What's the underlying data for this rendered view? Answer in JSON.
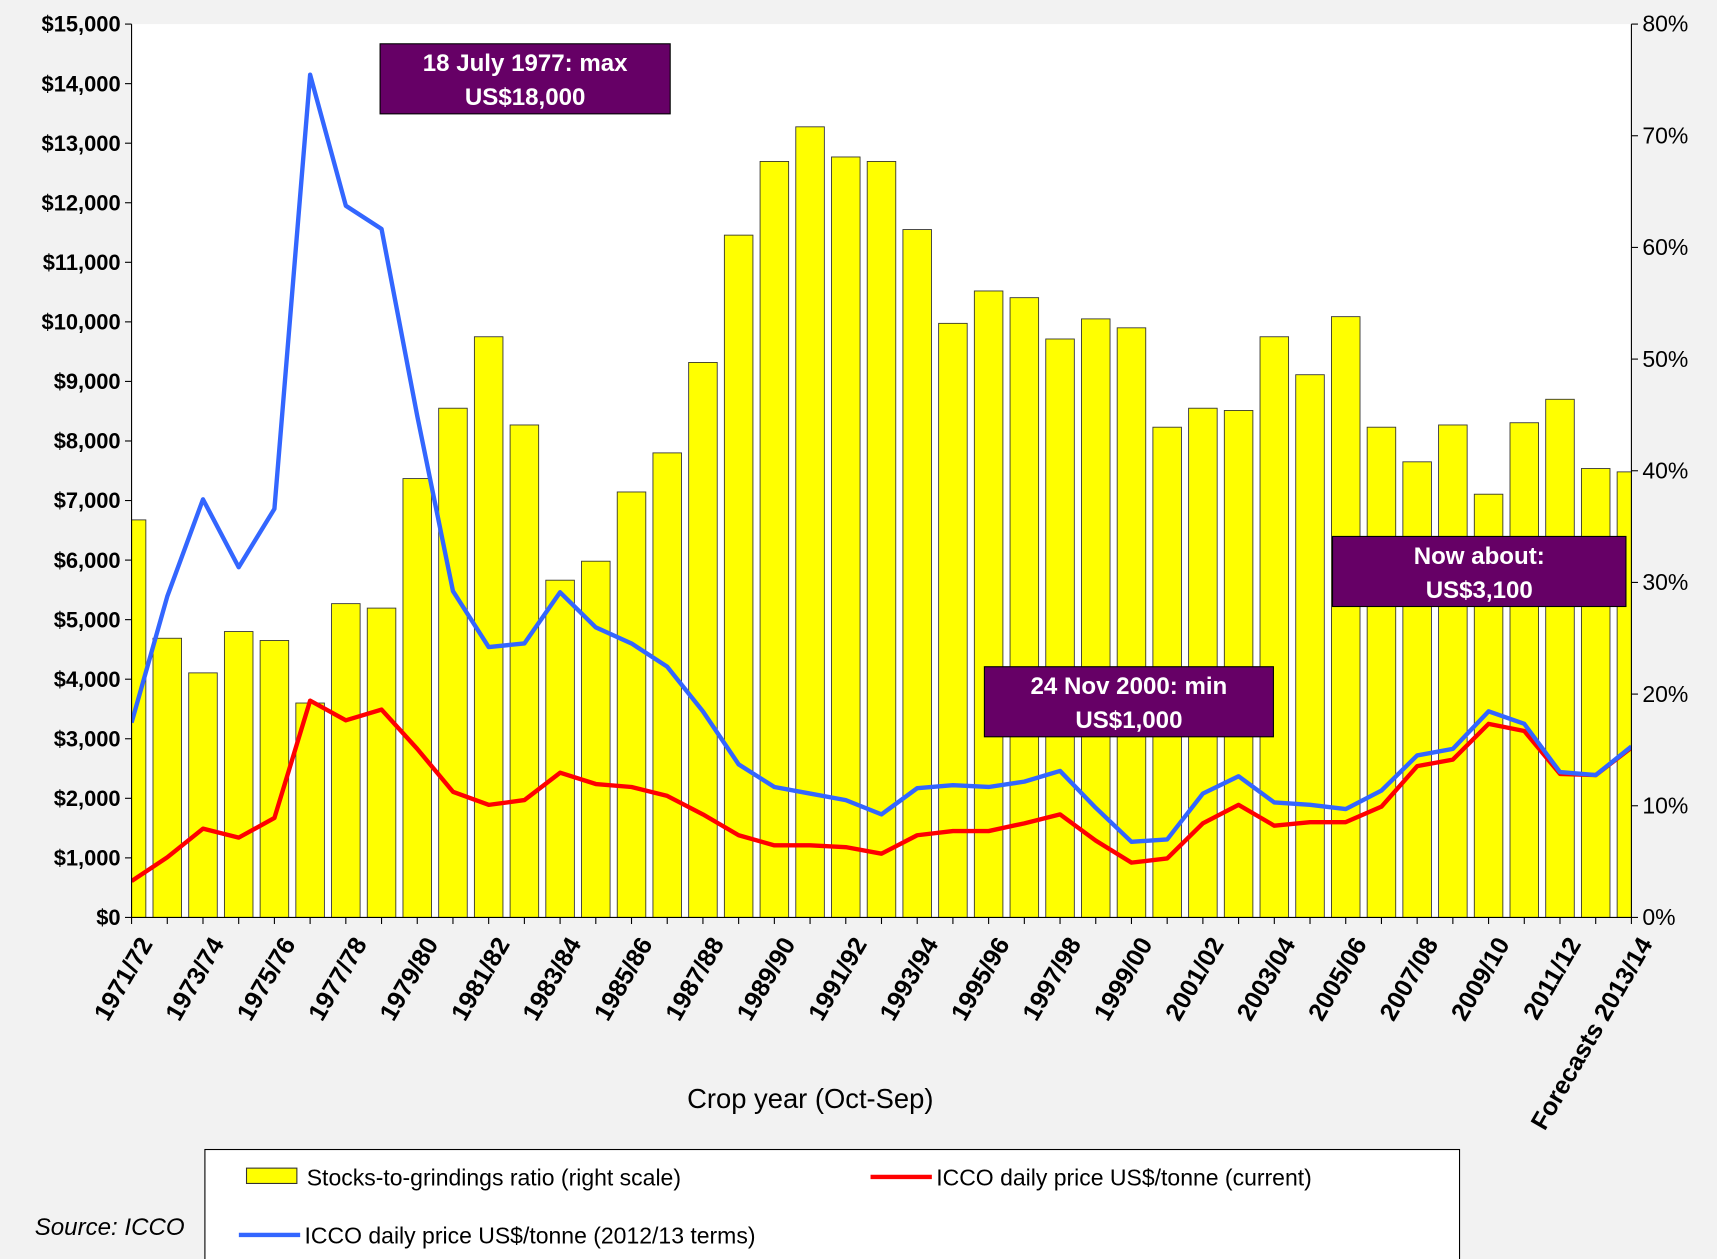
{
  "chart_data": {
    "type": "combo",
    "x_label": "Crop year (Oct-Sep)",
    "source": "Source: ICCO",
    "legend": "bottom",
    "categories": [
      "1971/72",
      null,
      "1973/74",
      null,
      "1975/76",
      null,
      "1977/78",
      null,
      "1979/80",
      null,
      "1981/82",
      null,
      "1983/84",
      null,
      "1985/86",
      null,
      "1987/88",
      null,
      "1989/90",
      null,
      "1991/92",
      null,
      "1993/94",
      null,
      "1995/96",
      null,
      "1997/98",
      null,
      "1999/00",
      null,
      "2001/02",
      null,
      "2003/04",
      null,
      "2005/06",
      null,
      "2007/08",
      null,
      "2009/10",
      null,
      "2011/12",
      null,
      "Forecasts 2013/14"
    ],
    "ylim": [
      0,
      15000
    ],
    "yticks": [
      {
        "value": 0,
        "label": "$0"
      },
      {
        "value": 1000,
        "label": "$1,000"
      },
      {
        "value": 2000,
        "label": "$2,000"
      },
      {
        "value": 3000,
        "label": "$3,000"
      },
      {
        "value": 4000,
        "label": "$4,000"
      },
      {
        "value": 5000,
        "label": "$5,000"
      },
      {
        "value": 6000,
        "label": "$6,000"
      },
      {
        "value": 7000,
        "label": "$7,000"
      },
      {
        "value": 8000,
        "label": "$8,000"
      },
      {
        "value": 9000,
        "label": "$9,000"
      },
      {
        "value": 10000,
        "label": "$10,000"
      },
      {
        "value": 11000,
        "label": "$11,000"
      },
      {
        "value": 12000,
        "label": "$12,000"
      },
      {
        "value": 13000,
        "label": "$13,000"
      },
      {
        "value": 14000,
        "label": "$14,000"
      },
      {
        "value": 15000,
        "label": "$15,000"
      }
    ],
    "y2lim": [
      0,
      80
    ],
    "y2ticks": [
      {
        "value": 0,
        "label": "0%"
      },
      {
        "value": 10,
        "label": "10%"
      },
      {
        "value": 20,
        "label": "20%"
      },
      {
        "value": 30,
        "label": "30%"
      },
      {
        "value": 40,
        "label": "40%"
      },
      {
        "value": 50,
        "label": "50%"
      },
      {
        "value": 60,
        "label": "60%"
      },
      {
        "value": 70,
        "label": "70%"
      },
      {
        "value": 80,
        "label": "80%"
      }
    ],
    "series": [
      {
        "name": "Stocks-to-grindings ratio (right scale)",
        "type": "bar",
        "axis": "y2",
        "color": "#ffff00",
        "values": [
          35.6,
          25.0,
          21.9,
          25.6,
          24.8,
          19.2,
          28.1,
          27.7,
          39.3,
          45.6,
          52.0,
          44.1,
          30.2,
          31.9,
          38.1,
          41.6,
          49.7,
          61.1,
          67.7,
          70.8,
          68.1,
          67.7,
          61.6,
          53.2,
          56.1,
          55.5,
          51.8,
          53.6,
          52.8,
          43.9,
          45.6,
          45.4,
          52.0,
          48.6,
          53.8,
          43.9,
          40.8,
          44.1,
          37.9,
          44.3,
          46.4,
          40.2,
          39.9
        ]
      },
      {
        "name": "ICCO daily price US$/tonne (current)",
        "type": "line",
        "color": "#ff0000",
        "values": [
          610,
          1010,
          1490,
          1340,
          1670,
          3640,
          3310,
          3490,
          2830,
          2110,
          1890,
          1970,
          2430,
          2240,
          2190,
          2040,
          1730,
          1380,
          1210,
          1210,
          1180,
          1070,
          1380,
          1450,
          1450,
          1580,
          1730,
          1290,
          920,
          990,
          1580,
          1890,
          1540,
          1600,
          1600,
          1860,
          2540,
          2650,
          3250,
          3130,
          2410,
          2390,
          2850
        ]
      },
      {
        "name": "ICCO daily price US$/tonne (2012/13 terms)",
        "type": "line",
        "color": "#3366ff",
        "values": [
          3270,
          5390,
          7020,
          5880,
          6860,
          14150,
          11950,
          11560,
          8420,
          5480,
          4540,
          4600,
          5460,
          4870,
          4600,
          4210,
          3460,
          2570,
          2190,
          2080,
          1970,
          1730,
          2170,
          2220,
          2190,
          2280,
          2460,
          1840,
          1270,
          1310,
          2080,
          2370,
          1930,
          1890,
          1820,
          2130,
          2720,
          2830,
          3460,
          3250,
          2440,
          2390,
          2870
        ]
      }
    ],
    "annotations": [
      {
        "lines": [
          "18 July 1977: max",
          "US$18,000"
        ]
      },
      {
        "lines": [
          "Now about:",
          "US$3,100"
        ]
      },
      {
        "lines": [
          "24 Nov 2000: min",
          "US$1,000"
        ]
      }
    ]
  }
}
